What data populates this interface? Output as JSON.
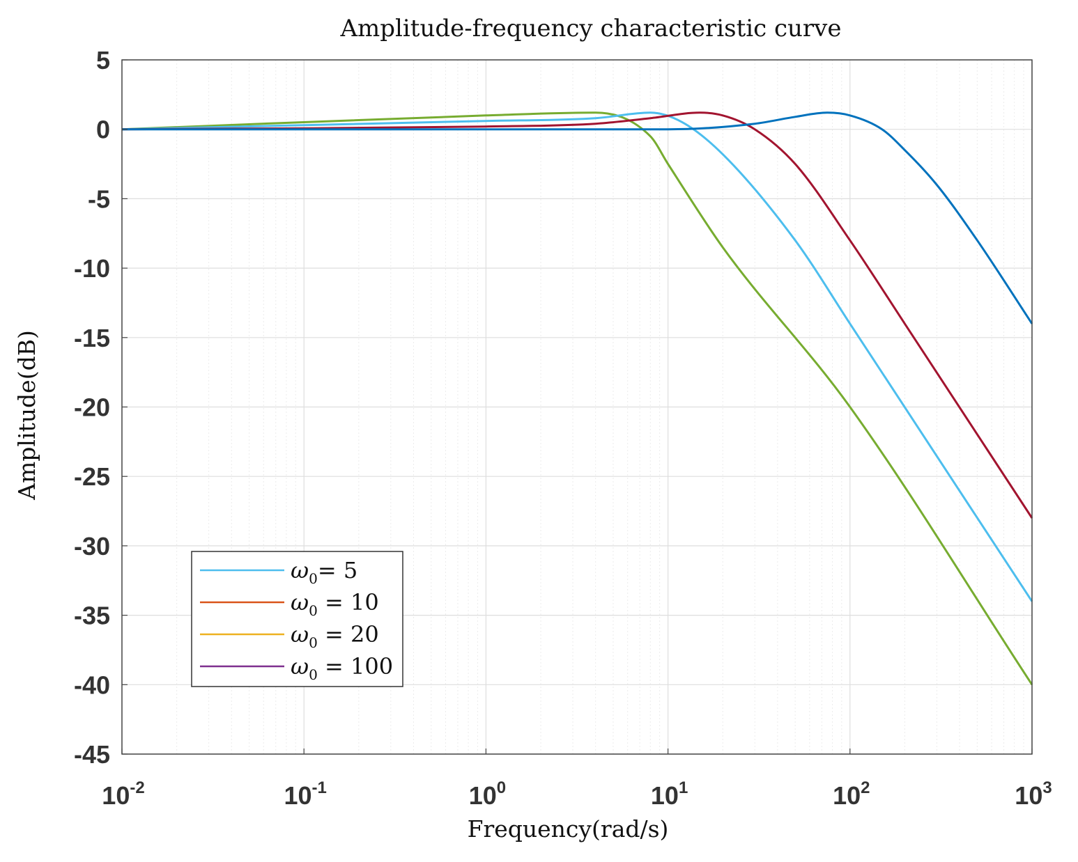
{
  "chart_data": {
    "type": "line",
    "title": "Amplitude-frequency characteristic curve",
    "xlabel": "Frequency(rad/s)",
    "ylabel": "Amplitude(dB)",
    "xscale": "log",
    "xlim": [
      0.01,
      1000
    ],
    "ylim": [
      -45,
      5
    ],
    "grid": true,
    "x_ticks": [
      {
        "base": "10",
        "exp": "-2"
      },
      {
        "base": "10",
        "exp": "-1"
      },
      {
        "base": "10",
        "exp": "0"
      },
      {
        "base": "10",
        "exp": "1"
      },
      {
        "base": "10",
        "exp": "2"
      },
      {
        "base": "10",
        "exp": "3"
      }
    ],
    "y_ticks": [
      "5",
      "0",
      "-5",
      "-10",
      "-15",
      "-20",
      "-25",
      "-30",
      "-35",
      "-40",
      "-45"
    ],
    "legend_location": "bottom-left",
    "legend": [
      {
        "symbol": "ω",
        "sub": "0",
        "text": "= 5",
        "color": "#4dbeee"
      },
      {
        "symbol": "ω",
        "sub": "0",
        "text": " = 10",
        "color": "#d95319"
      },
      {
        "symbol": "ω",
        "sub": "0",
        "text": " = 20",
        "color": "#edb120"
      },
      {
        "symbol": "ω",
        "sub": "0",
        "text": " = 100",
        "color": "#7e2f8e"
      }
    ],
    "series": [
      {
        "name": "green",
        "color": "#77ac30",
        "points": [
          [
            0.01,
            0
          ],
          [
            1,
            1.0
          ],
          [
            4,
            1.2
          ],
          [
            8,
            -0.5
          ],
          [
            10,
            -2.5
          ],
          [
            20,
            -8.5
          ],
          [
            100,
            -20
          ],
          [
            1000,
            -40
          ]
        ]
      },
      {
        "name": "light blue",
        "color": "#4dbeee",
        "points": [
          [
            0.01,
            0
          ],
          [
            1,
            0.6
          ],
          [
            4,
            0.8
          ],
          [
            8,
            1.2
          ],
          [
            12,
            0.5
          ],
          [
            20,
            -1.8
          ],
          [
            50,
            -8
          ],
          [
            100,
            -14
          ],
          [
            1000,
            -34
          ]
        ]
      },
      {
        "name": "dark red",
        "color": "#a2142f",
        "points": [
          [
            0.01,
            0
          ],
          [
            1,
            0.2
          ],
          [
            4,
            0.4
          ],
          [
            8,
            0.8
          ],
          [
            15,
            1.2
          ],
          [
            20,
            1.0
          ],
          [
            30,
            0
          ],
          [
            50,
            -2.5
          ],
          [
            100,
            -8
          ],
          [
            200,
            -14
          ],
          [
            1000,
            -28
          ]
        ]
      },
      {
        "name": "dark blue",
        "color": "#0072bd",
        "points": [
          [
            0.01,
            0
          ],
          [
            1,
            0
          ],
          [
            10,
            0
          ],
          [
            30,
            0.4
          ],
          [
            50,
            0.9
          ],
          [
            75,
            1.2
          ],
          [
            100,
            1.0
          ],
          [
            150,
            0
          ],
          [
            200,
            -1.5
          ],
          [
            300,
            -4
          ],
          [
            500,
            -8
          ],
          [
            1000,
            -14
          ]
        ]
      }
    ]
  }
}
